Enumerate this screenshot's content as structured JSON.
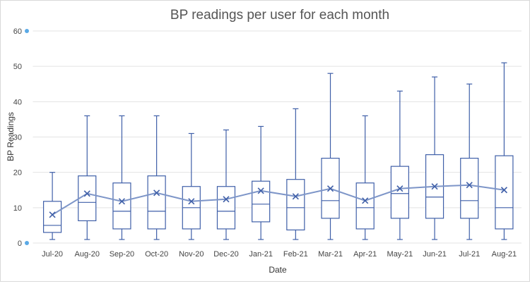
{
  "chart_data": {
    "type": "box",
    "title": "BP readings per user for each month",
    "xlabel": "Date",
    "ylabel": "BP Readings",
    "ylim": [
      0,
      60
    ],
    "yticks": [
      0,
      10,
      20,
      30,
      40,
      50,
      60
    ],
    "grid": true,
    "color": "#3f5fa8",
    "categories": [
      "Jul-20",
      "Aug-20",
      "Sep-20",
      "Oct-20",
      "Nov-20",
      "Dec-20",
      "Jan-21",
      "Feb-21",
      "Mar-21",
      "Apr-21",
      "May-21",
      "Jun-21",
      "Jul-21",
      "Aug-21"
    ],
    "boxes": [
      {
        "min": 1,
        "q1": 3,
        "median": 5,
        "q3": 11.8,
        "max": 20,
        "mean": 8
      },
      {
        "min": 1,
        "q1": 6.3,
        "median": 11.5,
        "q3": 19,
        "max": 36,
        "mean": 14
      },
      {
        "min": 1,
        "q1": 4,
        "median": 9,
        "q3": 17,
        "max": 36,
        "mean": 11.8
      },
      {
        "min": 1,
        "q1": 4,
        "median": 9,
        "q3": 19,
        "max": 36,
        "mean": 14.2
      },
      {
        "min": 1,
        "q1": 4,
        "median": 10,
        "q3": 16,
        "max": 31,
        "mean": 11.8
      },
      {
        "min": 1,
        "q1": 4,
        "median": 9,
        "q3": 16,
        "max": 32,
        "mean": 12.4
      },
      {
        "min": 1,
        "q1": 6,
        "median": 11,
        "q3": 17.5,
        "max": 33,
        "mean": 14.8
      },
      {
        "min": 1,
        "q1": 3.7,
        "median": 10,
        "q3": 18,
        "max": 38,
        "mean": 13.2
      },
      {
        "min": 1,
        "q1": 7,
        "median": 12,
        "q3": 24,
        "max": 48,
        "mean": 15.4
      },
      {
        "min": 1,
        "q1": 4,
        "median": 10,
        "q3": 17,
        "max": 36,
        "mean": 12
      },
      {
        "min": 1,
        "q1": 7,
        "median": 14,
        "q3": 21.7,
        "max": 43,
        "mean": 15.4
      },
      {
        "min": 1,
        "q1": 7,
        "median": 13,
        "q3": 25,
        "max": 47,
        "mean": 16
      },
      {
        "min": 1,
        "q1": 7,
        "median": 12,
        "q3": 24,
        "max": 45,
        "mean": 16.4
      },
      {
        "min": 1,
        "q1": 4,
        "median": 10,
        "q3": 24.7,
        "max": 51,
        "mean": 15
      }
    ]
  }
}
